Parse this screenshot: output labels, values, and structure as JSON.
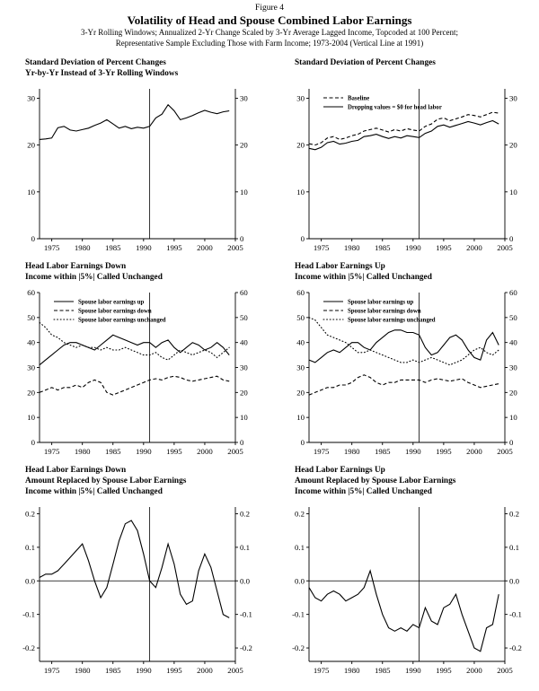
{
  "header": {
    "figure_label": "Figure 4",
    "title": "Volatility of Head and Spouse Combined Labor Earnings",
    "subtitle_line1": "3-Yr Rolling Windows; Annualized 2-Yr Change Scaled by 3-Yr Average Lagged Income, Topcoded at 100 Percent;",
    "subtitle_line2": "Representative Sample Excluding Those with Farm Income; 1973-2004 (Vertical Line at 1991)"
  },
  "line_color": "#000000",
  "chart_data": [
    {
      "type": "line",
      "title_lines": [
        "Standard Deviation of Percent Changes",
        "Yr-by-Yr Instead of 3-Yr Rolling Windows"
      ],
      "x": [
        1973,
        1974,
        1975,
        1976,
        1977,
        1978,
        1979,
        1980,
        1981,
        1982,
        1983,
        1984,
        1985,
        1986,
        1987,
        1988,
        1989,
        1990,
        1991,
        1992,
        1993,
        1994,
        1995,
        1996,
        1997,
        1998,
        1999,
        2000,
        2001,
        2002,
        2003,
        2004
      ],
      "xticks": [
        1975,
        1980,
        1985,
        1990,
        1995,
        2000,
        2005
      ],
      "xlim": [
        1973,
        2005
      ],
      "yticks": [
        0,
        10,
        20,
        30
      ],
      "ylim": [
        0,
        32
      ],
      "vline_x": 1991,
      "legend": false,
      "series": [
        {
          "name": "",
          "style": "solid",
          "values": [
            21.2,
            21.3,
            21.5,
            23.7,
            24.0,
            23.2,
            23.0,
            23.3,
            23.6,
            24.2,
            24.7,
            25.4,
            24.5,
            23.6,
            24.0,
            23.5,
            23.8,
            23.6,
            24.0,
            25.8,
            26.6,
            28.6,
            27.3,
            25.4,
            25.8,
            26.3,
            26.9,
            27.4,
            27.0,
            26.7,
            27.1,
            27.3
          ]
        }
      ]
    },
    {
      "type": "line",
      "title_lines": [
        "Standard Deviation of Percent Changes"
      ],
      "x": [
        1973,
        1974,
        1975,
        1976,
        1977,
        1978,
        1979,
        1980,
        1981,
        1982,
        1983,
        1984,
        1985,
        1986,
        1987,
        1988,
        1989,
        1990,
        1991,
        1992,
        1993,
        1994,
        1995,
        1996,
        1997,
        1998,
        1999,
        2000,
        2001,
        2002,
        2003,
        2004
      ],
      "xticks": [
        1975,
        1980,
        1985,
        1990,
        1995,
        2000,
        2005
      ],
      "xlim": [
        1973,
        2005
      ],
      "yticks": [
        0,
        10,
        20,
        30
      ],
      "ylim": [
        0,
        32
      ],
      "vline_x": 1991,
      "legend": true,
      "series": [
        {
          "name": "Baseline",
          "style": "dashed",
          "values": [
            20.3,
            20.0,
            20.5,
            21.5,
            21.8,
            21.2,
            21.5,
            22.0,
            22.3,
            23.0,
            23.3,
            23.6,
            23.2,
            22.8,
            23.3,
            23.0,
            23.5,
            23.2,
            23.0,
            24.0,
            24.5,
            25.5,
            25.8,
            25.2,
            25.6,
            26.0,
            26.5,
            26.3,
            26.0,
            26.5,
            27.0,
            26.8
          ]
        },
        {
          "name": "Dropping values = $0 for head labor",
          "style": "solid",
          "values": [
            19.3,
            19.0,
            19.5,
            20.5,
            20.8,
            20.2,
            20.4,
            20.8,
            21.0,
            21.8,
            22.0,
            22.3,
            21.8,
            21.4,
            21.8,
            21.5,
            22.0,
            21.8,
            21.6,
            22.5,
            23.0,
            24.0,
            24.3,
            23.8,
            24.2,
            24.6,
            25.0,
            24.7,
            24.3,
            24.8,
            25.2,
            24.5
          ]
        }
      ]
    },
    {
      "type": "line",
      "title_lines": [
        "Head Labor Earnings Down",
        "Income within |5%| Called Unchanged"
      ],
      "x": [
        1973,
        1974,
        1975,
        1976,
        1977,
        1978,
        1979,
        1980,
        1981,
        1982,
        1983,
        1984,
        1985,
        1986,
        1987,
        1988,
        1989,
        1990,
        1991,
        1992,
        1993,
        1994,
        1995,
        1996,
        1997,
        1998,
        1999,
        2000,
        2001,
        2002,
        2003,
        2004
      ],
      "xticks": [
        1975,
        1980,
        1985,
        1990,
        1995,
        2000,
        2005
      ],
      "xlim": [
        1973,
        2005
      ],
      "yticks": [
        0,
        10,
        20,
        30,
        40,
        50,
        60
      ],
      "ylim": [
        0,
        60
      ],
      "vline_x": 1991,
      "legend": true,
      "series": [
        {
          "name": "Spouse labor earnings up",
          "style": "solid",
          "values": [
            31,
            33,
            35,
            37,
            39,
            40,
            40,
            39,
            38,
            37,
            39,
            41,
            43,
            42,
            41,
            40,
            39,
            40,
            40,
            38,
            40,
            41,
            38,
            36,
            38,
            40,
            39,
            37,
            38,
            40,
            38,
            35
          ]
        },
        {
          "name": "Spouse labor earnings down",
          "style": "dashed",
          "values": [
            20,
            21,
            22,
            21,
            22,
            22,
            23,
            22,
            24,
            25,
            24,
            20,
            19,
            20,
            21,
            22,
            23,
            24,
            25,
            25.5,
            25,
            26,
            26.5,
            26,
            25,
            24.5,
            25,
            25.5,
            26,
            26.5,
            25,
            24.5
          ]
        },
        {
          "name": "Spouse labor earnings unchanged",
          "style": "dotted",
          "values": [
            48,
            46,
            43,
            42,
            40,
            39,
            38,
            39,
            38,
            38,
            37,
            38,
            37,
            37,
            38,
            37,
            36,
            35,
            35,
            36,
            34,
            33,
            35,
            37,
            36,
            35,
            36,
            37,
            36,
            34,
            36,
            38
          ]
        }
      ]
    },
    {
      "type": "line",
      "title_lines": [
        "Head Labor Earnings Up",
        "Income within |5%| Called Unchanged"
      ],
      "x": [
        1973,
        1974,
        1975,
        1976,
        1977,
        1978,
        1979,
        1980,
        1981,
        1982,
        1983,
        1984,
        1985,
        1986,
        1987,
        1988,
        1989,
        1990,
        1991,
        1992,
        1993,
        1994,
        1995,
        1996,
        1997,
        1998,
        1999,
        2000,
        2001,
        2002,
        2003,
        2004
      ],
      "xticks": [
        1975,
        1980,
        1985,
        1990,
        1995,
        2000,
        2005
      ],
      "xlim": [
        1973,
        2005
      ],
      "yticks": [
        0,
        10,
        20,
        30,
        40,
        50,
        60
      ],
      "ylim": [
        0,
        60
      ],
      "vline_x": 1991,
      "legend": true,
      "series": [
        {
          "name": "Spouse labor earnings up",
          "style": "solid",
          "values": [
            33,
            32,
            34,
            36,
            37,
            36,
            38,
            40,
            40,
            38,
            37,
            40,
            42,
            44,
            45,
            45,
            44,
            44,
            43,
            38,
            35,
            36,
            39,
            42,
            43,
            41,
            37,
            34,
            33,
            41,
            44,
            39
          ]
        },
        {
          "name": "Spouse labor earnings down",
          "style": "dashed",
          "values": [
            19,
            20,
            21,
            22,
            22,
            23,
            23,
            24,
            26,
            27,
            26,
            24,
            23,
            24,
            24,
            25,
            25,
            25,
            25,
            24,
            25,
            25.5,
            25,
            24.5,
            25,
            25.5,
            24,
            23,
            22,
            22.5,
            23,
            23.5
          ]
        },
        {
          "name": "Spouse labor earnings unchanged",
          "style": "dotted",
          "values": [
            50,
            49,
            46,
            43,
            42,
            41,
            40,
            38,
            36,
            36,
            37,
            36,
            35,
            34,
            33,
            32,
            32,
            33,
            32,
            33,
            34,
            33,
            32,
            31,
            32,
            33,
            35,
            37,
            38,
            36,
            35,
            37
          ]
        }
      ]
    },
    {
      "type": "line",
      "title_lines": [
        "Head Labor Earnings Down",
        "Amount Replaced by Spouse Labor Earnings",
        "Income within |5%| Called Unchanged"
      ],
      "x": [
        1973,
        1974,
        1975,
        1976,
        1977,
        1978,
        1979,
        1980,
        1981,
        1982,
        1983,
        1984,
        1985,
        1986,
        1987,
        1988,
        1989,
        1990,
        1991,
        1992,
        1993,
        1994,
        1995,
        1996,
        1997,
        1998,
        1999,
        2000,
        2001,
        2002,
        2003,
        2004
      ],
      "xticks": [
        1975,
        1980,
        1985,
        1990,
        1995,
        2000,
        2005
      ],
      "xlim": [
        1973,
        2005
      ],
      "yticks": [
        0.2,
        0.1,
        0.0,
        -0.1,
        -0.2
      ],
      "ytick_labels": [
        "0.2",
        "0.1",
        "0.0",
        "-0.1",
        "-0.2"
      ],
      "ylim": [
        -0.24,
        0.22
      ],
      "vline_x": 1991,
      "hline_y": 0.0,
      "legend": false,
      "series": [
        {
          "name": "",
          "style": "solid",
          "values": [
            0.01,
            0.02,
            0.02,
            0.03,
            0.05,
            0.07,
            0.09,
            0.11,
            0.06,
            0.0,
            -0.05,
            -0.02,
            0.05,
            0.12,
            0.17,
            0.18,
            0.15,
            0.08,
            0.0,
            -0.02,
            0.04,
            0.11,
            0.05,
            -0.04,
            -0.07,
            -0.06,
            0.03,
            0.08,
            0.04,
            -0.03,
            -0.1,
            -0.11
          ]
        }
      ]
    },
    {
      "type": "line",
      "title_lines": [
        "Head Labor Earnings Up",
        "Amount Replaced by Spouse Labor Earnings",
        "Income within |5%| Called Unchanged"
      ],
      "x": [
        1973,
        1974,
        1975,
        1976,
        1977,
        1978,
        1979,
        1980,
        1981,
        1982,
        1983,
        1984,
        1985,
        1986,
        1987,
        1988,
        1989,
        1990,
        1991,
        1992,
        1993,
        1994,
        1995,
        1996,
        1997,
        1998,
        1999,
        2000,
        2001,
        2002,
        2003,
        2004
      ],
      "xticks": [
        1975,
        1980,
        1985,
        1990,
        1995,
        2000,
        2005
      ],
      "xlim": [
        1973,
        2005
      ],
      "yticks": [
        0.2,
        0.1,
        0.0,
        -0.1,
        -0.2
      ],
      "ytick_labels": [
        "0.2",
        "0.1",
        "0.0",
        "-0.1",
        "-0.2"
      ],
      "ylim": [
        -0.24,
        0.22
      ],
      "vline_x": 1991,
      "hline_y": 0.0,
      "legend": false,
      "series": [
        {
          "name": "",
          "style": "solid",
          "values": [
            -0.02,
            -0.05,
            -0.06,
            -0.04,
            -0.03,
            -0.04,
            -0.06,
            -0.05,
            -0.04,
            -0.02,
            0.03,
            -0.04,
            -0.1,
            -0.14,
            -0.15,
            -0.14,
            -0.15,
            -0.13,
            -0.14,
            -0.08,
            -0.12,
            -0.13,
            -0.08,
            -0.07,
            -0.04,
            -0.1,
            -0.15,
            -0.2,
            -0.21,
            -0.14,
            -0.13,
            -0.04
          ]
        }
      ]
    }
  ]
}
